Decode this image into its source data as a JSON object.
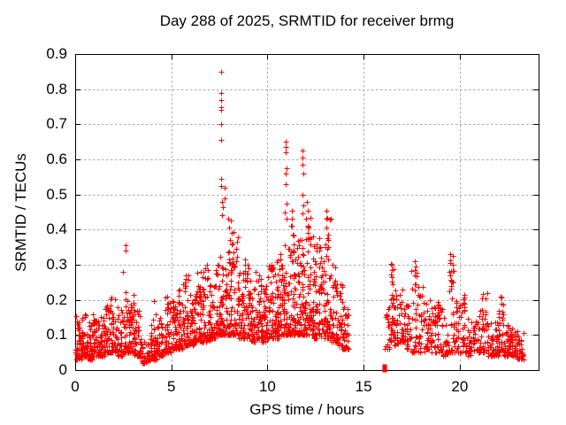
{
  "chart_data": {
    "type": "scatter",
    "title": "Day 288 of 2025, SRMTID for receiver brmg",
    "xlabel": "GPS time / hours",
    "ylabel": "SRMTID / TECUs",
    "xlim": [
      0,
      24.1
    ],
    "ylim": [
      0,
      0.9
    ],
    "xticks": [
      0,
      5,
      10,
      15,
      20
    ],
    "xtick_labels": [
      "0",
      "5",
      "10",
      "15",
      "20"
    ],
    "yticks": [
      0,
      0.1,
      0.2,
      0.3,
      0.4,
      0.5,
      0.6,
      0.7,
      0.8,
      0.9
    ],
    "ytick_labels": [
      "0",
      "0.1",
      "0.2",
      "0.3",
      "0.4",
      "0.5",
      "0.6",
      "0.7",
      "0.8",
      "0.9"
    ],
    "grid": "dashed",
    "legend": "none",
    "colors": {
      "marker": "#ff0000",
      "grid": "#a9a9a9",
      "axis": "#000000",
      "background": "#ffffff",
      "text": "#000000"
    },
    "marker": "plus",
    "marker_size_px": 7,
    "data_gap_hours": [
      14.2,
      16.1
    ],
    "axis_marker": {
      "x": 16.1,
      "y": 0.0,
      "shape": "filled-square",
      "note": "isolated zero-value point on x-axis"
    },
    "spike_points": [
      [
        2.6,
        0.355
      ],
      [
        2.64,
        0.34
      ],
      [
        5.75,
        0.27
      ],
      [
        6.55,
        0.28
      ],
      [
        6.85,
        0.3
      ],
      [
        6.88,
        0.285
      ],
      [
        7.59,
        0.85
      ],
      [
        7.6,
        0.79
      ],
      [
        7.61,
        0.77
      ],
      [
        7.59,
        0.75
      ],
      [
        7.61,
        0.74
      ],
      [
        7.6,
        0.7
      ],
      [
        7.59,
        0.655
      ],
      [
        7.61,
        0.545
      ],
      [
        7.59,
        0.525
      ],
      [
        7.64,
        0.48
      ],
      [
        7.66,
        0.465
      ],
      [
        7.63,
        0.44
      ],
      [
        7.75,
        0.52
      ],
      [
        7.77,
        0.49
      ],
      [
        7.95,
        0.43
      ],
      [
        8.0,
        0.405
      ],
      [
        8.1,
        0.425
      ],
      [
        8.15,
        0.39
      ],
      [
        8.05,
        0.37
      ],
      [
        8.2,
        0.36
      ],
      [
        8.25,
        0.335
      ],
      [
        8.35,
        0.31
      ],
      [
        8.85,
        0.315
      ],
      [
        8.95,
        0.3
      ],
      [
        9.55,
        0.27
      ],
      [
        10.2,
        0.3
      ],
      [
        10.23,
        0.285
      ],
      [
        10.65,
        0.33
      ],
      [
        10.68,
        0.315
      ],
      [
        10.94,
        0.65
      ],
      [
        10.96,
        0.635
      ],
      [
        10.94,
        0.62
      ],
      [
        10.98,
        0.575
      ],
      [
        10.95,
        0.56
      ],
      [
        10.94,
        0.53
      ],
      [
        10.99,
        0.475
      ],
      [
        10.92,
        0.45
      ],
      [
        11.0,
        0.43
      ],
      [
        11.25,
        0.455
      ],
      [
        11.28,
        0.43
      ],
      [
        11.2,
        0.41
      ],
      [
        11.32,
        0.385
      ],
      [
        11.82,
        0.625
      ],
      [
        11.84,
        0.605
      ],
      [
        11.82,
        0.585
      ],
      [
        11.86,
        0.56
      ],
      [
        11.82,
        0.5
      ],
      [
        11.87,
        0.47
      ],
      [
        11.8,
        0.445
      ],
      [
        12.05,
        0.48
      ],
      [
        12.1,
        0.455
      ],
      [
        12.0,
        0.43
      ],
      [
        12.15,
        0.405
      ],
      [
        12.2,
        0.375
      ],
      [
        12.7,
        0.375
      ],
      [
        12.73,
        0.35
      ],
      [
        13.05,
        0.455
      ],
      [
        13.07,
        0.43
      ],
      [
        13.05,
        0.405
      ],
      [
        13.1,
        0.375
      ],
      [
        13.0,
        0.35
      ],
      [
        13.08,
        0.325
      ],
      [
        13.4,
        0.3
      ],
      [
        16.45,
        0.3
      ],
      [
        16.47,
        0.285
      ],
      [
        16.45,
        0.265
      ],
      [
        16.5,
        0.245
      ],
      [
        17.68,
        0.31
      ],
      [
        17.7,
        0.295
      ],
      [
        17.66,
        0.27
      ],
      [
        17.72,
        0.245
      ],
      [
        19.5,
        0.33
      ],
      [
        19.52,
        0.305
      ],
      [
        19.5,
        0.27
      ],
      [
        19.55,
        0.24
      ],
      [
        21.45,
        0.22
      ],
      [
        22.1,
        0.21
      ],
      [
        22.15,
        0.19
      ]
    ],
    "cloud_segments": [
      [
        0.0,
        0.3,
        40,
        0.03,
        0.16,
        2.0
      ],
      [
        0.3,
        0.6,
        42,
        0.04,
        0.17,
        2.0
      ],
      [
        0.6,
        0.9,
        40,
        0.03,
        0.15,
        2.0
      ],
      [
        0.9,
        1.2,
        38,
        0.04,
        0.16,
        2.0
      ],
      [
        1.2,
        1.5,
        40,
        0.04,
        0.16,
        2.0
      ],
      [
        1.5,
        1.8,
        42,
        0.05,
        0.2,
        2.0
      ],
      [
        1.8,
        2.2,
        46,
        0.05,
        0.23,
        2.1
      ],
      [
        2.2,
        2.45,
        34,
        0.04,
        0.18,
        2.0
      ],
      [
        2.45,
        2.75,
        42,
        0.05,
        0.28,
        2.2
      ],
      [
        2.75,
        3.05,
        40,
        0.05,
        0.24,
        2.1
      ],
      [
        3.05,
        3.4,
        42,
        0.04,
        0.19,
        2.0
      ],
      [
        3.4,
        3.95,
        52,
        0.02,
        0.09,
        1.5
      ],
      [
        3.95,
        4.25,
        38,
        0.03,
        0.2,
        2.3
      ],
      [
        4.25,
        4.6,
        40,
        0.04,
        0.17,
        2.0
      ],
      [
        4.6,
        5.0,
        46,
        0.05,
        0.22,
        2.1
      ],
      [
        5.0,
        5.3,
        40,
        0.06,
        0.2,
        2.0
      ],
      [
        5.3,
        5.6,
        40,
        0.06,
        0.23,
        2.1
      ],
      [
        5.6,
        6.0,
        48,
        0.07,
        0.27,
        2.1
      ],
      [
        6.0,
        6.3,
        40,
        0.07,
        0.24,
        2.0
      ],
      [
        6.3,
        6.6,
        42,
        0.08,
        0.28,
        2.1
      ],
      [
        6.6,
        7.0,
        50,
        0.08,
        0.3,
        2.1
      ],
      [
        7.0,
        7.3,
        42,
        0.09,
        0.28,
        2.0
      ],
      [
        7.3,
        7.6,
        44,
        0.1,
        0.33,
        2.1
      ],
      [
        7.6,
        7.9,
        44,
        0.1,
        0.3,
        2.0
      ],
      [
        7.9,
        8.2,
        44,
        0.1,
        0.36,
        2.2
      ],
      [
        8.2,
        8.5,
        44,
        0.1,
        0.4,
        2.3
      ],
      [
        8.5,
        8.8,
        40,
        0.09,
        0.28,
        2.0
      ],
      [
        8.8,
        9.1,
        42,
        0.09,
        0.31,
        2.1
      ],
      [
        9.1,
        9.4,
        40,
        0.08,
        0.25,
        2.0
      ],
      [
        9.4,
        9.7,
        42,
        0.09,
        0.28,
        2.0
      ],
      [
        9.7,
        10.0,
        40,
        0.08,
        0.24,
        1.9
      ],
      [
        10.0,
        10.3,
        44,
        0.09,
        0.3,
        2.1
      ],
      [
        10.3,
        10.6,
        46,
        0.09,
        0.33,
        2.1
      ],
      [
        10.6,
        10.9,
        46,
        0.1,
        0.3,
        2.0
      ],
      [
        10.9,
        11.2,
        48,
        0.1,
        0.38,
        2.2
      ],
      [
        11.2,
        11.5,
        48,
        0.1,
        0.42,
        2.3
      ],
      [
        11.5,
        11.8,
        46,
        0.1,
        0.38,
        2.2
      ],
      [
        11.8,
        12.1,
        48,
        0.1,
        0.42,
        2.2
      ],
      [
        12.1,
        12.4,
        48,
        0.1,
        0.45,
        2.3
      ],
      [
        12.4,
        12.7,
        44,
        0.09,
        0.38,
        2.2
      ],
      [
        12.7,
        13.0,
        42,
        0.09,
        0.37,
        2.2
      ],
      [
        13.0,
        13.3,
        44,
        0.09,
        0.44,
        2.4
      ],
      [
        13.3,
        13.6,
        40,
        0.08,
        0.3,
        2.1
      ],
      [
        13.6,
        13.9,
        38,
        0.07,
        0.25,
        2.0
      ],
      [
        13.9,
        14.2,
        38,
        0.06,
        0.2,
        2.0
      ],
      [
        16.1,
        16.35,
        20,
        0.06,
        0.18,
        1.9
      ],
      [
        16.35,
        16.6,
        30,
        0.08,
        0.31,
        2.2
      ],
      [
        16.6,
        16.9,
        28,
        0.07,
        0.26,
        2.0
      ],
      [
        16.9,
        17.2,
        30,
        0.08,
        0.25,
        2.0
      ],
      [
        17.2,
        17.5,
        26,
        0.06,
        0.2,
        1.9
      ],
      [
        17.5,
        17.85,
        32,
        0.05,
        0.31,
        2.2
      ],
      [
        17.85,
        18.2,
        28,
        0.05,
        0.25,
        2.0
      ],
      [
        18.2,
        18.5,
        26,
        0.06,
        0.22,
        2.0
      ],
      [
        18.5,
        18.8,
        26,
        0.05,
        0.18,
        1.9
      ],
      [
        18.8,
        19.1,
        28,
        0.05,
        0.21,
        2.0
      ],
      [
        19.1,
        19.4,
        24,
        0.04,
        0.15,
        1.8
      ],
      [
        19.4,
        19.7,
        28,
        0.05,
        0.33,
        2.3
      ],
      [
        19.7,
        20.0,
        26,
        0.05,
        0.2,
        2.0
      ],
      [
        20.0,
        20.35,
        30,
        0.05,
        0.22,
        2.0
      ],
      [
        20.35,
        20.7,
        28,
        0.04,
        0.15,
        1.8
      ],
      [
        20.7,
        21.1,
        30,
        0.05,
        0.18,
        1.9
      ],
      [
        21.1,
        21.4,
        28,
        0.05,
        0.22,
        2.0
      ],
      [
        21.4,
        21.7,
        26,
        0.04,
        0.16,
        1.8
      ],
      [
        21.7,
        22.0,
        28,
        0.04,
        0.14,
        1.8
      ],
      [
        22.0,
        22.3,
        30,
        0.05,
        0.21,
        2.0
      ],
      [
        22.3,
        22.6,
        32,
        0.04,
        0.13,
        1.7
      ],
      [
        22.6,
        22.95,
        36,
        0.04,
        0.12,
        1.6
      ],
      [
        22.95,
        23.3,
        36,
        0.03,
        0.11,
        1.6
      ]
    ]
  }
}
